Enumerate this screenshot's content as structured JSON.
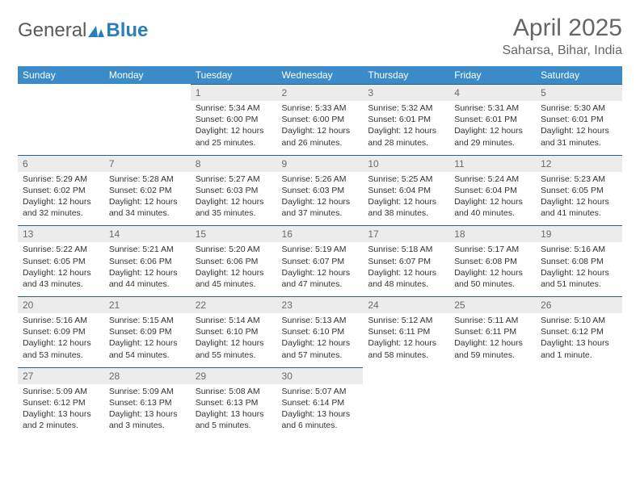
{
  "logo": {
    "text_a": "General",
    "text_b": "Blue"
  },
  "title": "April 2025",
  "location": "Saharsa, Bihar, India",
  "colors": {
    "header_bg": "#3b8bc8",
    "header_text": "#ffffff",
    "dayrow_bg": "#ececec",
    "dayrow_border": "#2a5f8a",
    "text": "#333333",
    "title_color": "#666666"
  },
  "weekdays": [
    "Sunday",
    "Monday",
    "Tuesday",
    "Wednesday",
    "Thursday",
    "Friday",
    "Saturday"
  ],
  "weeks": [
    {
      "nums": [
        "",
        "",
        "1",
        "2",
        "3",
        "4",
        "5"
      ],
      "cells": [
        null,
        null,
        {
          "sunrise": "5:34 AM",
          "sunset": "6:00 PM",
          "daylight": "12 hours and 25 minutes."
        },
        {
          "sunrise": "5:33 AM",
          "sunset": "6:00 PM",
          "daylight": "12 hours and 26 minutes."
        },
        {
          "sunrise": "5:32 AM",
          "sunset": "6:01 PM",
          "daylight": "12 hours and 28 minutes."
        },
        {
          "sunrise": "5:31 AM",
          "sunset": "6:01 PM",
          "daylight": "12 hours and 29 minutes."
        },
        {
          "sunrise": "5:30 AM",
          "sunset": "6:01 PM",
          "daylight": "12 hours and 31 minutes."
        }
      ]
    },
    {
      "nums": [
        "6",
        "7",
        "8",
        "9",
        "10",
        "11",
        "12"
      ],
      "cells": [
        {
          "sunrise": "5:29 AM",
          "sunset": "6:02 PM",
          "daylight": "12 hours and 32 minutes."
        },
        {
          "sunrise": "5:28 AM",
          "sunset": "6:02 PM",
          "daylight": "12 hours and 34 minutes."
        },
        {
          "sunrise": "5:27 AM",
          "sunset": "6:03 PM",
          "daylight": "12 hours and 35 minutes."
        },
        {
          "sunrise": "5:26 AM",
          "sunset": "6:03 PM",
          "daylight": "12 hours and 37 minutes."
        },
        {
          "sunrise": "5:25 AM",
          "sunset": "6:04 PM",
          "daylight": "12 hours and 38 minutes."
        },
        {
          "sunrise": "5:24 AM",
          "sunset": "6:04 PM",
          "daylight": "12 hours and 40 minutes."
        },
        {
          "sunrise": "5:23 AM",
          "sunset": "6:05 PM",
          "daylight": "12 hours and 41 minutes."
        }
      ]
    },
    {
      "nums": [
        "13",
        "14",
        "15",
        "16",
        "17",
        "18",
        "19"
      ],
      "cells": [
        {
          "sunrise": "5:22 AM",
          "sunset": "6:05 PM",
          "daylight": "12 hours and 43 minutes."
        },
        {
          "sunrise": "5:21 AM",
          "sunset": "6:06 PM",
          "daylight": "12 hours and 44 minutes."
        },
        {
          "sunrise": "5:20 AM",
          "sunset": "6:06 PM",
          "daylight": "12 hours and 45 minutes."
        },
        {
          "sunrise": "5:19 AM",
          "sunset": "6:07 PM",
          "daylight": "12 hours and 47 minutes."
        },
        {
          "sunrise": "5:18 AM",
          "sunset": "6:07 PM",
          "daylight": "12 hours and 48 minutes."
        },
        {
          "sunrise": "5:17 AM",
          "sunset": "6:08 PM",
          "daylight": "12 hours and 50 minutes."
        },
        {
          "sunrise": "5:16 AM",
          "sunset": "6:08 PM",
          "daylight": "12 hours and 51 minutes."
        }
      ]
    },
    {
      "nums": [
        "20",
        "21",
        "22",
        "23",
        "24",
        "25",
        "26"
      ],
      "cells": [
        {
          "sunrise": "5:16 AM",
          "sunset": "6:09 PM",
          "daylight": "12 hours and 53 minutes."
        },
        {
          "sunrise": "5:15 AM",
          "sunset": "6:09 PM",
          "daylight": "12 hours and 54 minutes."
        },
        {
          "sunrise": "5:14 AM",
          "sunset": "6:10 PM",
          "daylight": "12 hours and 55 minutes."
        },
        {
          "sunrise": "5:13 AM",
          "sunset": "6:10 PM",
          "daylight": "12 hours and 57 minutes."
        },
        {
          "sunrise": "5:12 AM",
          "sunset": "6:11 PM",
          "daylight": "12 hours and 58 minutes."
        },
        {
          "sunrise": "5:11 AM",
          "sunset": "6:11 PM",
          "daylight": "12 hours and 59 minutes."
        },
        {
          "sunrise": "5:10 AM",
          "sunset": "6:12 PM",
          "daylight": "13 hours and 1 minute."
        }
      ]
    },
    {
      "nums": [
        "27",
        "28",
        "29",
        "30",
        "",
        "",
        ""
      ],
      "cells": [
        {
          "sunrise": "5:09 AM",
          "sunset": "6:12 PM",
          "daylight": "13 hours and 2 minutes."
        },
        {
          "sunrise": "5:09 AM",
          "sunset": "6:13 PM",
          "daylight": "13 hours and 3 minutes."
        },
        {
          "sunrise": "5:08 AM",
          "sunset": "6:13 PM",
          "daylight": "13 hours and 5 minutes."
        },
        {
          "sunrise": "5:07 AM",
          "sunset": "6:14 PM",
          "daylight": "13 hours and 6 minutes."
        },
        null,
        null,
        null
      ]
    }
  ],
  "labels": {
    "sunrise": "Sunrise:",
    "sunset": "Sunset:",
    "daylight": "Daylight:"
  }
}
